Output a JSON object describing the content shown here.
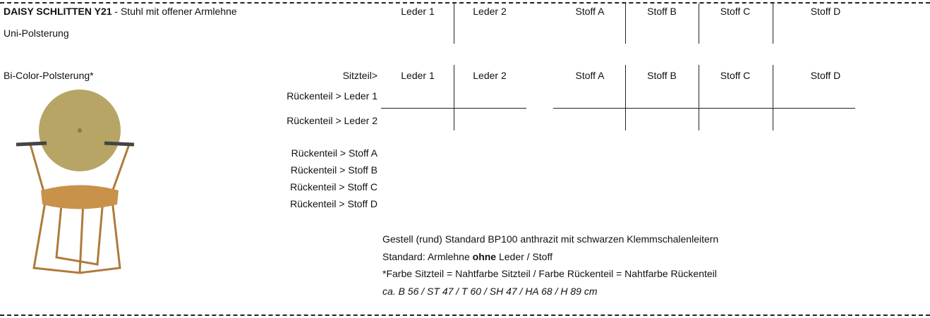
{
  "header": {
    "title_bold": "DAISY SCHLITTEN Y21",
    "title_rest": " - Stuhl mit offener Armlehne"
  },
  "uni": {
    "label": "Uni-Polsterung",
    "columns": [
      "Leder 1",
      "Leder 2",
      "Stoff A",
      "Stoff B",
      "Stoff C",
      "Stoff D"
    ]
  },
  "bicolor": {
    "label": "Bi-Color-Polsterung*",
    "seat_label": "Sitzteil>",
    "columns": [
      "Leder 1",
      "Leder 2",
      "Stoff A",
      "Stoff B",
      "Stoff C",
      "Stoff D"
    ],
    "back_labels": [
      "Rückenteil > Leder 1",
      "Rückenteil > Leder 2",
      "Rückenteil > Stoff A",
      "Rückenteil > Stoff B",
      "Rückenteil > Stoff C",
      "Rückenteil > Stoff D"
    ]
  },
  "notes": [
    "Gestell (rund) Standard BP100 anthrazit mit schwarzen Klemmschalenleitern",
    [
      "Standard: Armlehne ",
      "ohne",
      " Leder / Stoff"
    ],
    "*Farbe Sitzteil = Nahtfarbe Sitzteil / Farbe Rückenteil = Nahtfarbe Rückenteil",
    "ca. B 56 / ST 47 / T 60 / SH 47 / HA 68 / H 89 cm"
  ]
}
